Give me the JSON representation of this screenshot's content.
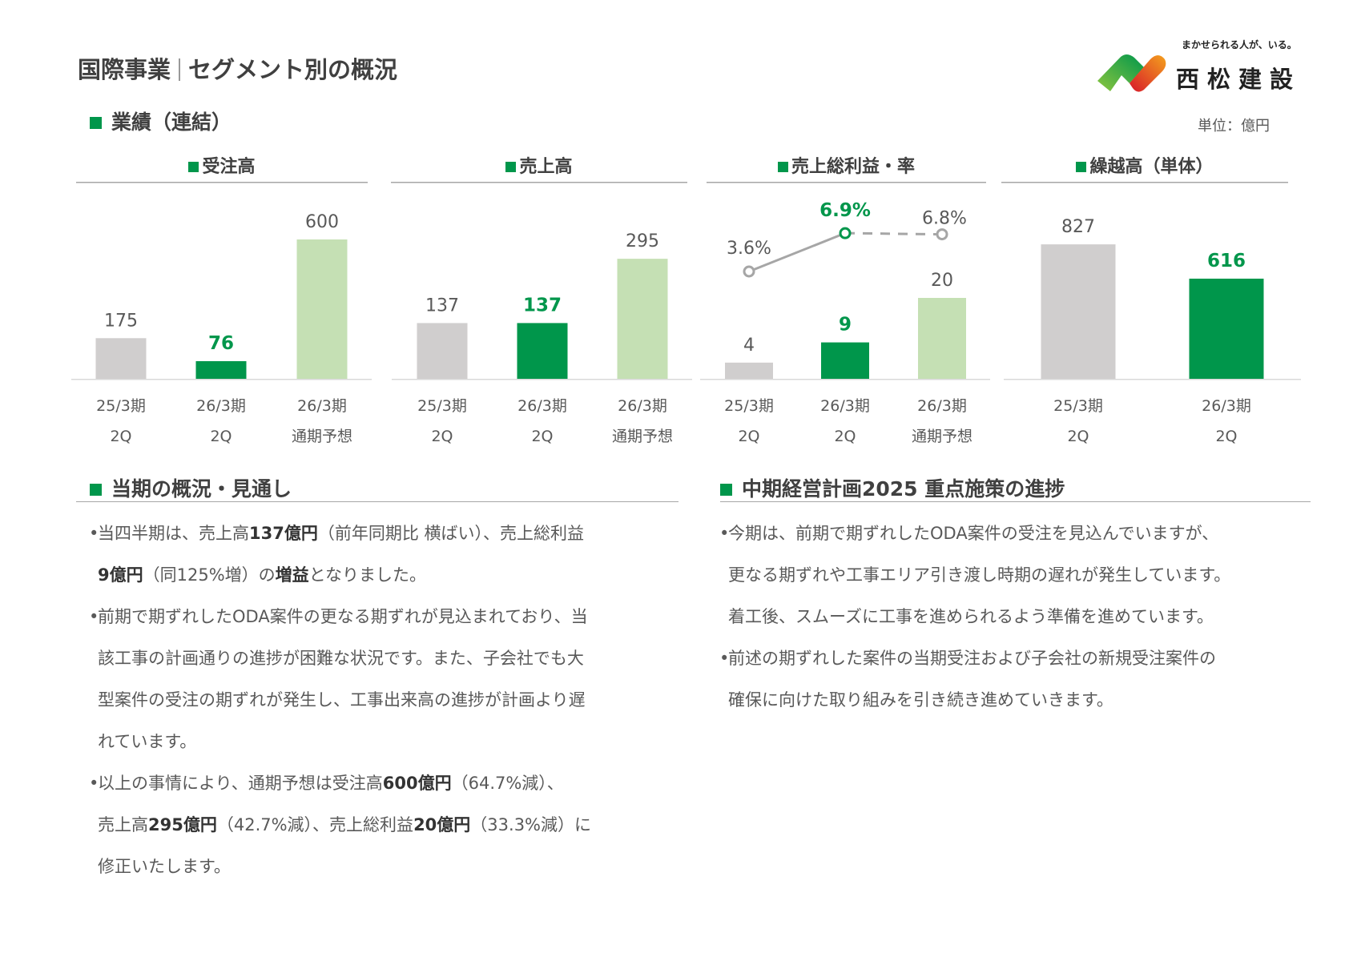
{
  "header": {
    "title_left": "国際事業",
    "title_right": "セグメント別の概況",
    "unit": "単位：億円"
  },
  "logo": {
    "tagline": "まかせられる人が、いる。",
    "name": "西松建設"
  },
  "section_results": "業績（連結）",
  "colors": {
    "accent": "#00964b",
    "prior": "#d0cece",
    "forecast": "#c5e0b4",
    "line": "#a6a6a6"
  },
  "chart_data": [
    {
      "type": "bar",
      "title": "受注高",
      "categories": [
        [
          "25/3期",
          "2Q"
        ],
        [
          "26/3期",
          "2Q"
        ],
        [
          "26/3期",
          "通期予想"
        ]
      ],
      "values": [
        175,
        76,
        600
      ],
      "labels": [
        "175",
        "76",
        "600"
      ]
    },
    {
      "type": "bar",
      "title": "売上高",
      "categories": [
        [
          "25/3期",
          "2Q"
        ],
        [
          "26/3期",
          "2Q"
        ],
        [
          "26/3期",
          "通期予想"
        ]
      ],
      "values": [
        137,
        137,
        295
      ],
      "labels": [
        "137",
        "137",
        "295"
      ]
    },
    {
      "type": "bar+line",
      "title": "売上総利益・率",
      "categories": [
        [
          "25/3期",
          "2Q"
        ],
        [
          "26/3期",
          "2Q"
        ],
        [
          "26/3期",
          "通期予想"
        ]
      ],
      "values": [
        4,
        9,
        20
      ],
      "labels": [
        "4",
        "9",
        "20"
      ],
      "rate": [
        3.6,
        6.9,
        6.8
      ],
      "rate_labels": [
        "3.6%",
        "6.9%",
        "6.8%"
      ]
    },
    {
      "type": "bar",
      "title": "繰越高（単体）",
      "categories": [
        [
          "25/3期",
          "2Q"
        ],
        [
          "26/3期",
          "2Q"
        ]
      ],
      "values": [
        827,
        616
      ],
      "labels": [
        "827",
        "616"
      ]
    }
  ],
  "left": {
    "heading": "当期の概況・見通し",
    "bullets": [
      [
        [
          "当四半期は、売上高",
          0
        ],
        [
          "137億円",
          1
        ],
        [
          "（前年同期比 横ばい）、売上総利益",
          0
        ]
      ],
      [
        [
          "9億円",
          1
        ],
        [
          "（同125%増）の",
          0
        ],
        [
          "増益",
          1
        ],
        [
          "となりました。",
          0
        ]
      ],
      [
        [
          "前期で期ずれしたODA案件の更なる期ずれが見込まれており、当",
          0
        ]
      ],
      [
        [
          "該工事の計画通りの進捗が困難な状況です。また、子会社でも大",
          0
        ]
      ],
      [
        [
          "型案件の受注の期ずれが発生し、工事出来高の進捗が計画より遅",
          0
        ]
      ],
      [
        [
          "れています。",
          0
        ]
      ],
      [
        [
          "以上の事情により、通期予想は受注高",
          0
        ],
        [
          "600億円",
          1
        ],
        [
          "（64.7%減）、",
          0
        ]
      ],
      [
        [
          "売上高",
          0
        ],
        [
          "295億円",
          1
        ],
        [
          "（42.7%減）、売上総利益",
          0
        ],
        [
          "20億円",
          1
        ],
        [
          "（33.3%減）に",
          0
        ]
      ],
      [
        [
          "修正いたします。",
          0
        ]
      ]
    ],
    "bullet_starts": [
      0,
      2,
      6
    ]
  },
  "right": {
    "heading": "中期経営計画2025 重点施策の進捗",
    "bullets": [
      [
        [
          "今期は、前期で期ずれしたODA案件の受注を見込んでいますが、",
          0
        ]
      ],
      [
        [
          "更なる期ずれや工事エリア引き渡し時期の遅れが発生しています。",
          0
        ]
      ],
      [
        [
          "着工後、スムーズに工事を進められるよう準備を進めています。",
          0
        ]
      ],
      [
        [
          "前述の期ずれした案件の当期受注および子会社の新規受注案件の",
          0
        ]
      ],
      [
        [
          "確保に向けた取り組みを引き続き進めていきます。",
          0
        ]
      ]
    ],
    "bullet_starts": [
      0,
      3
    ]
  }
}
